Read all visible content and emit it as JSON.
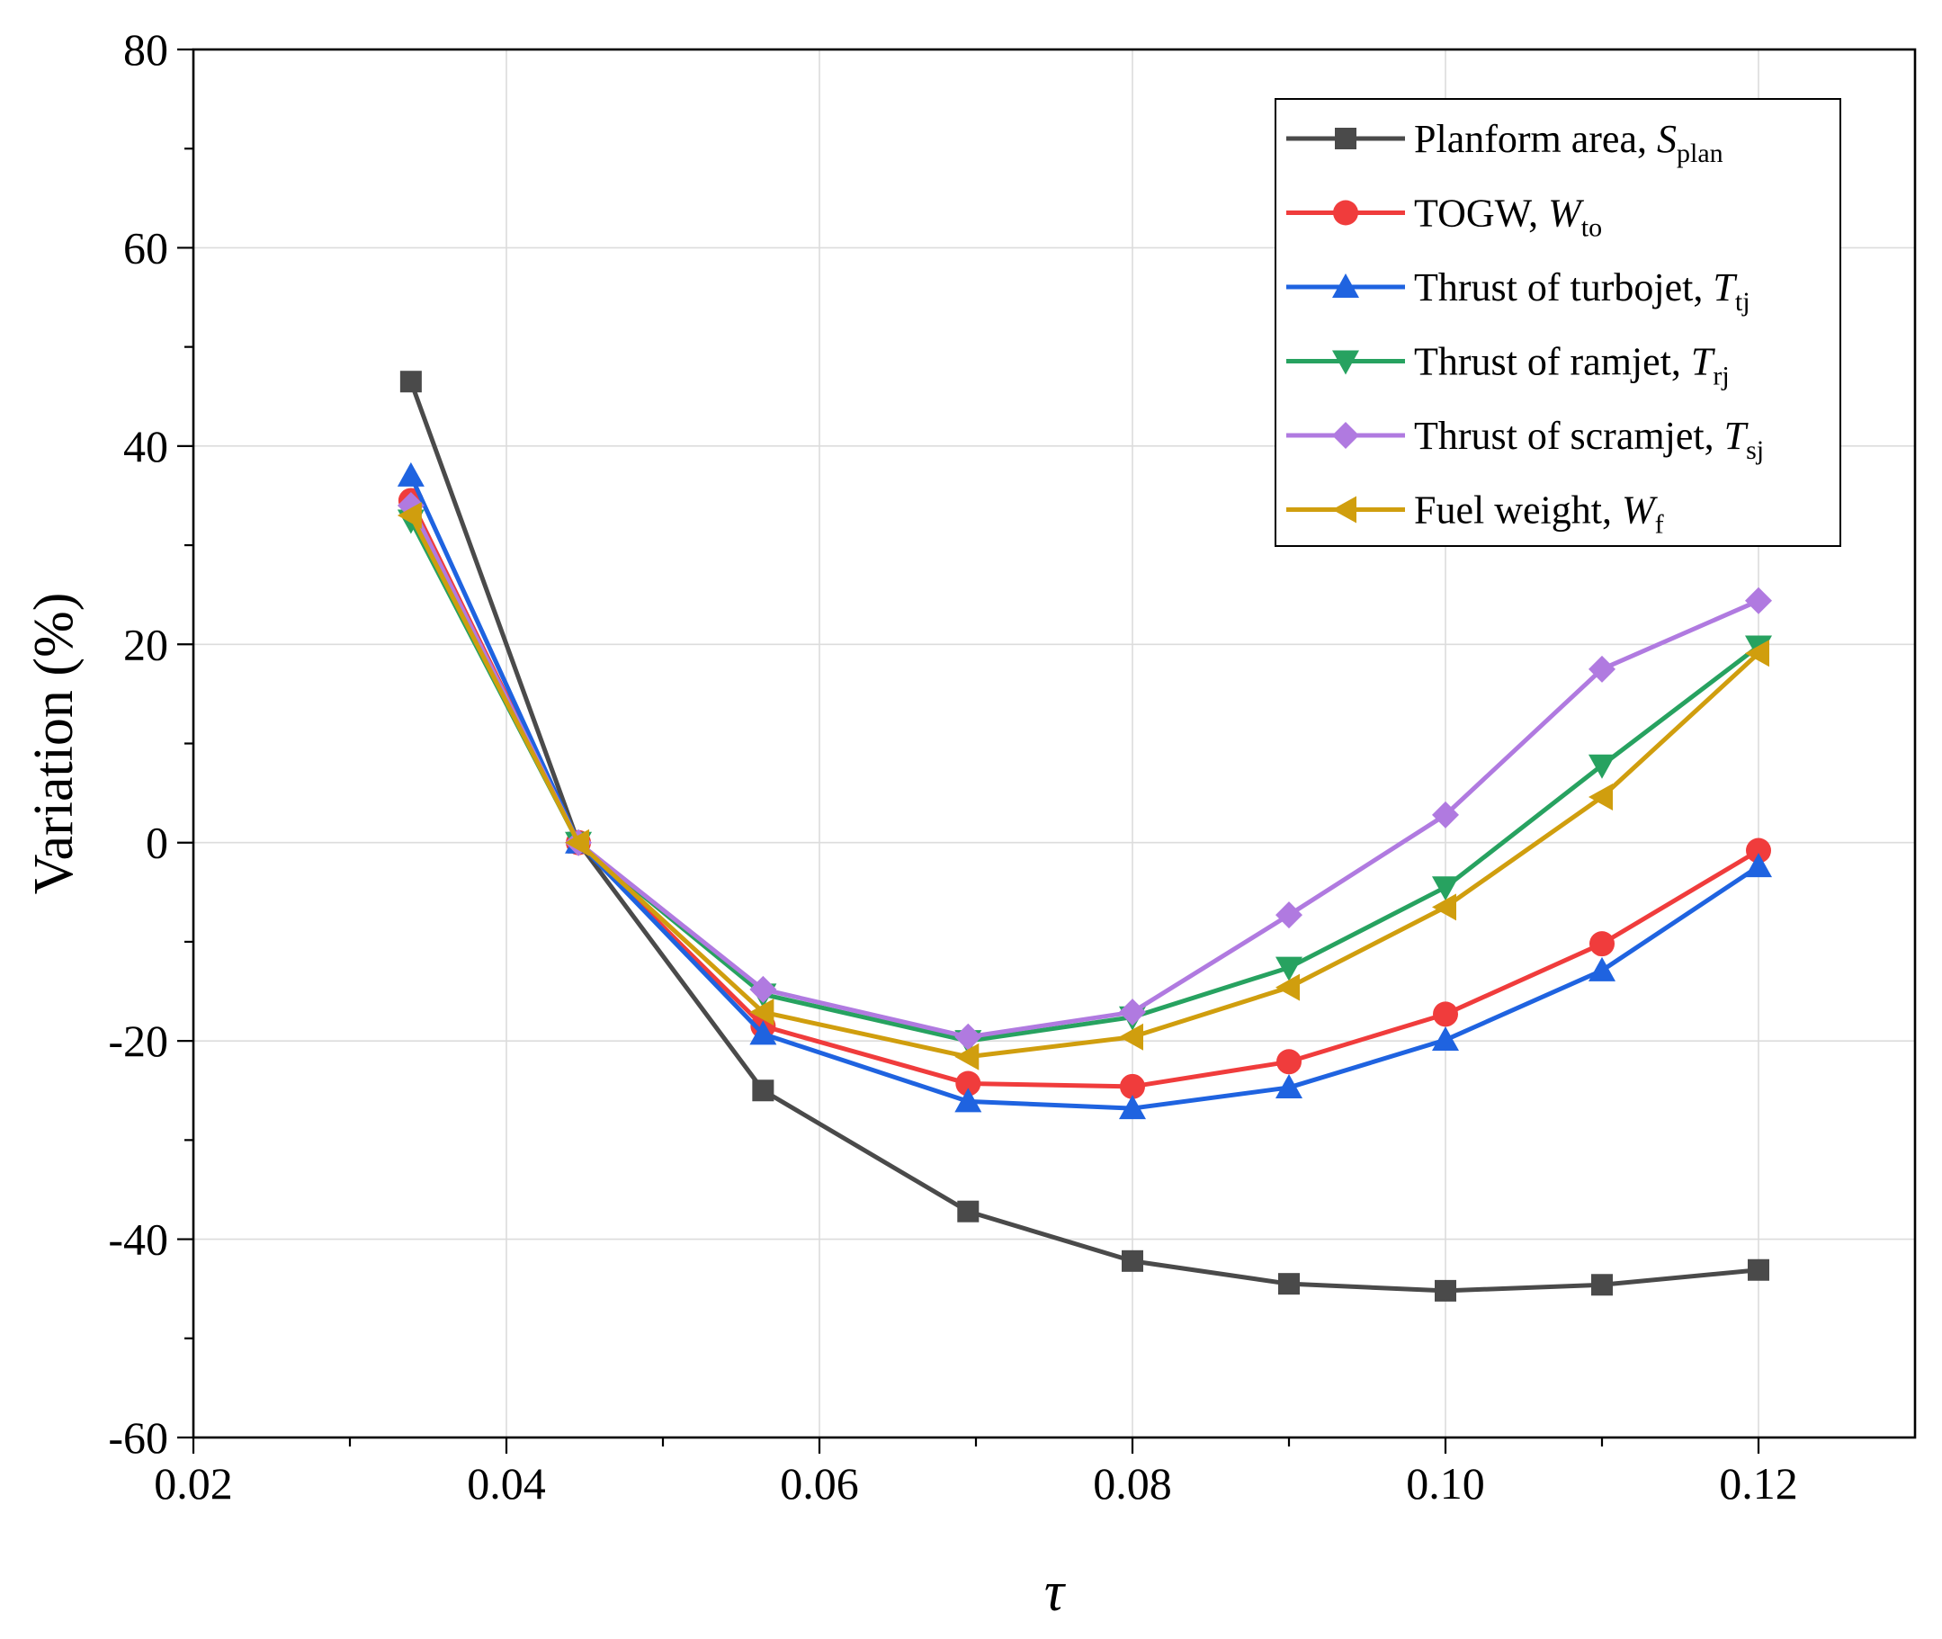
{
  "chart_data": {
    "type": "line",
    "title": "",
    "xlabel": "τ",
    "ylabel": "Variation (%)",
    "xlim": [
      0.02,
      0.13
    ],
    "ylim": [
      -60,
      80
    ],
    "x_ticks": [
      0.02,
      0.04,
      0.06,
      0.08,
      0.1,
      0.12
    ],
    "x_tick_labels": [
      "0.02",
      "0.04",
      "0.06",
      "0.08",
      "0.10",
      "0.12"
    ],
    "x_minor_ticks": [
      0.03,
      0.05,
      0.07,
      0.09,
      0.11
    ],
    "y_ticks": [
      -60,
      -40,
      -20,
      0,
      20,
      40,
      60,
      80
    ],
    "y_tick_labels": [
      "-60",
      "-40",
      "-20",
      "0",
      "20",
      "40",
      "60",
      "80"
    ],
    "y_minor_ticks": [
      -50,
      -30,
      -10,
      10,
      30,
      50,
      70
    ],
    "grid": true,
    "legend_position": "top-right",
    "series": [
      {
        "name": "Planform area, S_plan",
        "label_main": "Planform area, ",
        "label_var": "S",
        "label_sub": "plan",
        "color": "#4a4a4a",
        "marker": "square",
        "x": [
          0.0339,
          0.0446,
          0.0564,
          0.0695,
          0.08,
          0.09,
          0.1,
          0.11,
          0.12
        ],
        "values": [
          46.5,
          0,
          -25,
          -37.2,
          -42.2,
          -44.5,
          -45.2,
          -44.6,
          -43.1
        ]
      },
      {
        "name": "TOGW, W_to",
        "label_main": "TOGW, ",
        "label_var": "W",
        "label_sub": "to",
        "color": "#f03c3c",
        "marker": "circle",
        "x": [
          0.0339,
          0.0446,
          0.0564,
          0.0695,
          0.08,
          0.09,
          0.1,
          0.11,
          0.12
        ],
        "values": [
          34.5,
          0,
          -18.5,
          -24.3,
          -24.6,
          -22.1,
          -17.3,
          -10.2,
          -0.8
        ]
      },
      {
        "name": "Thrust of turbojet, T_tj",
        "label_main": "Thrust of turbojet, ",
        "label_var": "T",
        "label_sub": "tj",
        "color": "#1f63e0",
        "marker": "triangle-up",
        "x": [
          0.0339,
          0.0446,
          0.0564,
          0.0695,
          0.08,
          0.09,
          0.1,
          0.11,
          0.12
        ],
        "values": [
          37,
          0,
          -19.3,
          -26.1,
          -26.8,
          -24.7,
          -19.9,
          -12.9,
          -2.4
        ]
      },
      {
        "name": "Thrust of ramjet, T_rj",
        "label_main": "Thrust of ramjet, ",
        "label_var": "T",
        "label_sub": "rj",
        "color": "#27a260",
        "marker": "triangle-down",
        "x": [
          0.0339,
          0.0446,
          0.0564,
          0.0695,
          0.08,
          0.09,
          0.1,
          0.11,
          0.12
        ],
        "values": [
          32.5,
          0,
          -15.3,
          -20,
          -17.6,
          -12.6,
          -4.5,
          7.8,
          19.8
        ]
      },
      {
        "name": "Thrust of scramjet, T_sj",
        "label_main": "Thrust of scramjet, ",
        "label_var": "T",
        "label_sub": "sj",
        "color": "#b07ae0",
        "marker": "diamond",
        "x": [
          0.0339,
          0.0446,
          0.0564,
          0.0695,
          0.08,
          0.09,
          0.1,
          0.11,
          0.12
        ],
        "values": [
          34,
          0,
          -14.8,
          -19.6,
          -17.1,
          -7.3,
          2.8,
          17.5,
          24.4
        ]
      },
      {
        "name": "Fuel weight, W_f",
        "label_main": "Fuel weight, ",
        "label_var": "W",
        "label_sub": "f",
        "color": "#d09e0e",
        "marker": "triangle-left",
        "x": [
          0.0339,
          0.0446,
          0.0564,
          0.0695,
          0.08,
          0.09,
          0.1,
          0.11,
          0.12
        ],
        "values": [
          33,
          0,
          -17.1,
          -21.6,
          -19.6,
          -14.6,
          -6.5,
          4.6,
          19.1
        ]
      }
    ]
  }
}
